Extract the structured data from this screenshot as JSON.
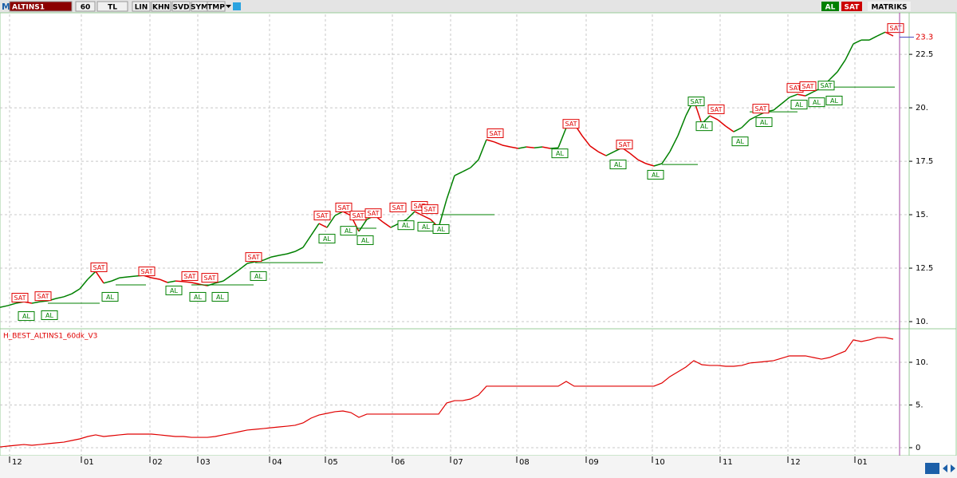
{
  "toolbar": {
    "logo": "M",
    "items": [
      "ALTINS1",
      "60",
      "TL",
      "LIN",
      "KHN",
      "SVD",
      "SYM",
      "TMP"
    ],
    "right": [
      "AL",
      "SAT",
      "MATRIKS"
    ]
  },
  "chart_data": [
    {
      "type": "line",
      "x": [
        0,
        1,
        2,
        3,
        4,
        5,
        6,
        7,
        8,
        9,
        10,
        11,
        12,
        13,
        14,
        15,
        16,
        17,
        18,
        19,
        20,
        21,
        22,
        23,
        24,
        25,
        26,
        27,
        28,
        29,
        30,
        31,
        32,
        33,
        34,
        35,
        36,
        37,
        38,
        39,
        40,
        41,
        42,
        43,
        44,
        45,
        46,
        47,
        48,
        49,
        50,
        51,
        52,
        53,
        54,
        55,
        56,
        57,
        58,
        59,
        60,
        61,
        62,
        63,
        64,
        65,
        66,
        67,
        68,
        69,
        70,
        71,
        72,
        73,
        74,
        75,
        76,
        77,
        78,
        79,
        80,
        81,
        82,
        83,
        84,
        85,
        86,
        87,
        88,
        89,
        90,
        91,
        92,
        93,
        94,
        95,
        96,
        97,
        98,
        99,
        100,
        101,
        102,
        103,
        104,
        105,
        106,
        107,
        108,
        109,
        110,
        111,
        112
      ],
      "values": [
        10.67,
        10.75,
        10.86,
        10.93,
        10.86,
        10.93,
        10.97,
        11.08,
        11.16,
        11.3,
        11.53,
        11.98,
        12.35,
        11.8,
        11.9,
        12.05,
        12.09,
        12.13,
        12.16,
        12.05,
        11.98,
        11.83,
        11.9,
        11.87,
        11.83,
        11.75,
        11.68,
        11.8,
        11.9,
        12.16,
        12.43,
        12.72,
        12.8,
        12.87,
        13.02,
        13.1,
        13.17,
        13.28,
        13.47,
        14.03,
        14.59,
        14.4,
        14.96,
        15.15,
        14.96,
        14.22,
        14.78,
        14.96,
        14.66,
        14.4,
        14.59,
        14.78,
        15.15,
        14.96,
        14.78,
        14.4,
        15.71,
        16.83,
        17.01,
        17.2,
        17.57,
        18.51,
        18.4,
        18.25,
        18.17,
        18.1,
        18.17,
        18.13,
        18.17,
        18.1,
        18.13,
        19.07,
        19.25,
        18.69,
        18.21,
        17.95,
        17.76,
        17.95,
        18.13,
        17.87,
        17.57,
        17.39,
        17.28,
        17.39,
        17.95,
        18.69,
        19.63,
        20.37,
        19.25,
        19.63,
        19.44,
        19.14,
        18.88,
        19.07,
        19.44,
        19.63,
        19.81,
        19.89,
        20.19,
        20.49,
        20.63,
        20.56,
        20.75,
        20.93,
        21.31,
        21.68,
        22.24,
        22.99,
        23.17,
        23.17,
        23.36,
        23.54,
        23.36
      ],
      "up_color": "#008000",
      "down_color": "#e00000",
      "signals": [
        {
          "label": "SAT",
          "x": 2.5,
          "y": 11.12
        },
        {
          "label": "SAT",
          "x": 5.4,
          "y": 11.19
        },
        {
          "label": "SAT",
          "x": 12.4,
          "y": 12.54
        },
        {
          "label": "SAT",
          "x": 18.4,
          "y": 12.35
        },
        {
          "label": "SAT",
          "x": 23.8,
          "y": 12.13
        },
        {
          "label": "SAT",
          "x": 26.3,
          "y": 12.05
        },
        {
          "label": "SAT",
          "x": 31.8,
          "y": 13.02
        },
        {
          "label": "SAT",
          "x": 40.4,
          "y": 14.96
        },
        {
          "label": "SAT",
          "x": 43.1,
          "y": 15.34
        },
        {
          "label": "SAT",
          "x": 44.9,
          "y": 14.96
        },
        {
          "label": "SAT",
          "x": 46.8,
          "y": 15.07
        },
        {
          "label": "SAT",
          "x": 49.9,
          "y": 15.34
        },
        {
          "label": "SAT",
          "x": 52.6,
          "y": 15.41
        },
        {
          "label": "SAT",
          "x": 53.9,
          "y": 15.26
        },
        {
          "label": "SAT",
          "x": 62.1,
          "y": 18.81
        },
        {
          "label": "SAT",
          "x": 71.6,
          "y": 19.25
        },
        {
          "label": "SAT",
          "x": 78.3,
          "y": 18.28
        },
        {
          "label": "SAT",
          "x": 87.3,
          "y": 20.3
        },
        {
          "label": "SAT",
          "x": 89.8,
          "y": 19.93
        },
        {
          "label": "SAT",
          "x": 95.4,
          "y": 19.96
        },
        {
          "label": "SAT",
          "x": 99.7,
          "y": 20.93
        },
        {
          "label": "SAT",
          "x": 101.3,
          "y": 21.01
        },
        {
          "label": "SAT",
          "x": 103.6,
          "y": 21.04
        },
        {
          "label": "SAT",
          "x": 112.3,
          "y": 23.73
        },
        {
          "label": "AL",
          "x": 3.3,
          "y": 10.26
        },
        {
          "label": "AL",
          "x": 6.2,
          "y": 10.3
        },
        {
          "label": "AL",
          "x": 13.8,
          "y": 11.16
        },
        {
          "label": "AL",
          "x": 21.8,
          "y": 11.46
        },
        {
          "label": "AL",
          "x": 24.8,
          "y": 11.16
        },
        {
          "label": "AL",
          "x": 27.6,
          "y": 11.16
        },
        {
          "label": "AL",
          "x": 32.4,
          "y": 12.13
        },
        {
          "label": "AL",
          "x": 41.0,
          "y": 13.88
        },
        {
          "label": "AL",
          "x": 43.7,
          "y": 14.25
        },
        {
          "label": "AL",
          "x": 45.8,
          "y": 13.81
        },
        {
          "label": "AL",
          "x": 50.9,
          "y": 14.51
        },
        {
          "label": "AL",
          "x": 53.4,
          "y": 14.44
        },
        {
          "label": "AL",
          "x": 55.3,
          "y": 14.33
        },
        {
          "label": "AL",
          "x": 70.2,
          "y": 17.87
        },
        {
          "label": "AL",
          "x": 77.5,
          "y": 17.35
        },
        {
          "label": "AL",
          "x": 82.2,
          "y": 16.87
        },
        {
          "label": "AL",
          "x": 88.3,
          "y": 19.14
        },
        {
          "label": "AL",
          "x": 92.8,
          "y": 18.43
        },
        {
          "label": "AL",
          "x": 95.8,
          "y": 19.33
        },
        {
          "label": "AL",
          "x": 100.2,
          "y": 20.15
        },
        {
          "label": "AL",
          "x": 102.4,
          "y": 20.26
        },
        {
          "label": "AL",
          "x": 104.6,
          "y": 20.34
        }
      ],
      "levels": [
        {
          "x1": 6,
          "x2": 12.5,
          "value": 10.86
        },
        {
          "x1": 14.5,
          "x2": 18.3,
          "value": 11.72
        },
        {
          "x1": 24,
          "x2": 31.8,
          "value": 11.72
        },
        {
          "x1": 32,
          "x2": 40.5,
          "value": 12.76
        },
        {
          "x1": 44,
          "x2": 47.2,
          "value": 14.37
        },
        {
          "x1": 55.2,
          "x2": 62,
          "value": 15.0
        },
        {
          "x1": 83,
          "x2": 87.5,
          "value": 17.35
        },
        {
          "x1": 94,
          "x2": 100,
          "value": 19.81
        },
        {
          "x1": 104,
          "x2": 112.2,
          "value": 20.97
        }
      ],
      "last_value": 23.3,
      "cursor_x": 112.8,
      "xlim": [
        0,
        114
      ],
      "ylim": [
        9.74,
        24.37
      ],
      "yticks": [
        {
          "value": 10,
          "label": "10."
        },
        12.5,
        {
          "value": 15,
          "label": "15."
        },
        17.5,
        {
          "value": 20,
          "label": "20."
        },
        22.5
      ],
      "grid": true
    },
    {
      "type": "line",
      "title": "H_BEST_ALTINS1_60dk_V3",
      "x": [
        0,
        1,
        2,
        3,
        4,
        5,
        6,
        7,
        8,
        9,
        10,
        11,
        12,
        13,
        14,
        15,
        16,
        17,
        18,
        19,
        20,
        21,
        22,
        23,
        24,
        25,
        26,
        27,
        28,
        29,
        30,
        31,
        32,
        33,
        34,
        35,
        36,
        37,
        38,
        39,
        40,
        41,
        42,
        43,
        44,
        45,
        46,
        47,
        48,
        49,
        50,
        51,
        52,
        53,
        54,
        55,
        56,
        57,
        58,
        59,
        60,
        61,
        62,
        63,
        64,
        65,
        66,
        67,
        68,
        69,
        70,
        71,
        72,
        73,
        74,
        75,
        76,
        77,
        78,
        79,
        80,
        81,
        82,
        83,
        84,
        85,
        86,
        87,
        88,
        89,
        90,
        91,
        92,
        93,
        94,
        95,
        96,
        97,
        98,
        99,
        100,
        101,
        102,
        103,
        104,
        105,
        106,
        107,
        108,
        109,
        110,
        111,
        112
      ],
      "values": [
        0.09,
        0.19,
        0.28,
        0.37,
        0.28,
        0.37,
        0.47,
        0.56,
        0.65,
        0.84,
        1.03,
        1.31,
        1.5,
        1.31,
        1.4,
        1.5,
        1.59,
        1.59,
        1.59,
        1.59,
        1.5,
        1.4,
        1.31,
        1.31,
        1.21,
        1.21,
        1.21,
        1.31,
        1.5,
        1.68,
        1.87,
        2.06,
        2.15,
        2.24,
        2.34,
        2.43,
        2.52,
        2.62,
        2.9,
        3.46,
        3.83,
        4.02,
        4.21,
        4.3,
        4.11,
        3.55,
        3.93,
        3.93,
        3.93,
        3.93,
        3.93,
        3.93,
        3.93,
        3.93,
        3.93,
        3.93,
        5.23,
        5.51,
        5.51,
        5.7,
        6.17,
        7.2,
        7.2,
        7.2,
        7.2,
        7.2,
        7.2,
        7.2,
        7.2,
        7.2,
        7.2,
        7.76,
        7.2,
        7.2,
        7.2,
        7.2,
        7.2,
        7.2,
        7.2,
        7.2,
        7.2,
        7.2,
        7.2,
        7.57,
        8.32,
        8.88,
        9.44,
        10.19,
        9.72,
        9.63,
        9.63,
        9.53,
        9.53,
        9.63,
        9.91,
        10.0,
        10.09,
        10.19,
        10.47,
        10.75,
        10.75,
        10.75,
        10.56,
        10.37,
        10.56,
        10.93,
        11.31,
        12.62,
        12.43,
        12.62,
        12.9,
        12.9,
        12.71
      ],
      "color": "#e00000",
      "xlim": [
        0,
        114
      ],
      "ylim": [
        -0.84,
        13.83
      ],
      "xticks": [
        {
          "value": 1.2,
          "label": "12"
        },
        {
          "value": 10.2,
          "label": "01"
        },
        {
          "value": 18.8,
          "label": "02"
        },
        {
          "value": 24.8,
          "label": "03"
        },
        {
          "value": 33.8,
          "label": "04"
        },
        {
          "value": 40.8,
          "label": "05"
        },
        {
          "value": 49.2,
          "label": "06"
        },
        {
          "value": 56.5,
          "label": "07"
        },
        {
          "value": 64.8,
          "label": "08"
        },
        {
          "value": 73.5,
          "label": "09"
        },
        {
          "value": 81.8,
          "label": "10"
        },
        {
          "value": 90.3,
          "label": "11"
        },
        {
          "value": 98.8,
          "label": "12"
        },
        {
          "value": 107.2,
          "label": "01"
        }
      ],
      "yticks": [
        0,
        {
          "value": 5,
          "label": "5."
        },
        {
          "value": 10,
          "label": "10."
        }
      ],
      "grid": true
    }
  ]
}
